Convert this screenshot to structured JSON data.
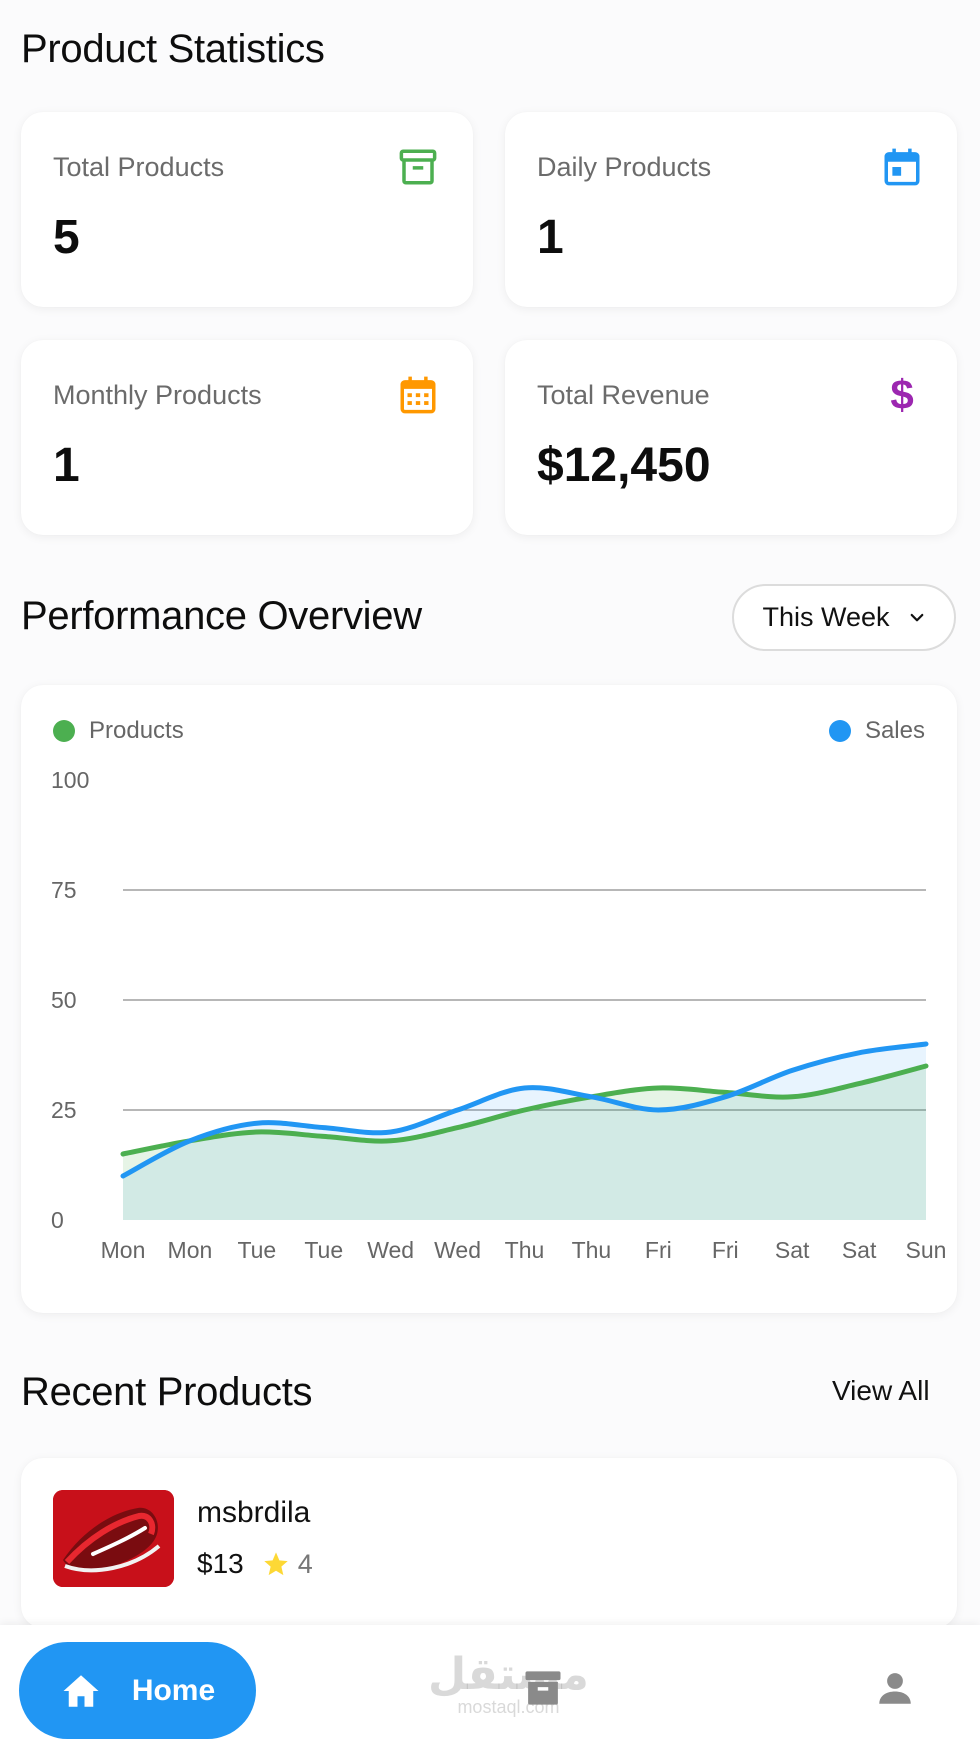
{
  "header": {
    "title": "Product Statistics"
  },
  "stats": [
    {
      "label": "Total Products",
      "value": "5",
      "icon": "archive-icon",
      "color": "#4caf50"
    },
    {
      "label": "Daily Products",
      "value": "1",
      "icon": "calendar-today-icon",
      "color": "#2196f3"
    },
    {
      "label": "Monthly Products",
      "value": "1",
      "icon": "calendar-month-icon",
      "color": "#ff9800"
    },
    {
      "label": "Total Revenue",
      "value": "$12,450",
      "icon": "dollar-icon",
      "color": "#9c27b0"
    }
  ],
  "performance": {
    "title": "Performance Overview",
    "period": "This Week"
  },
  "chart_data": {
    "type": "line",
    "title": "",
    "categories": [
      "Mon",
      "Mon",
      "Tue",
      "Tue",
      "Wed",
      "Wed",
      "Thu",
      "Thu",
      "Fri",
      "Fri",
      "Sat",
      "Sat",
      "Sun"
    ],
    "series": [
      {
        "name": "Products",
        "color": "#4caf50",
        "values": [
          15,
          18,
          20,
          19,
          18,
          21,
          25,
          28,
          30,
          29,
          28,
          31,
          35
        ]
      },
      {
        "name": "Sales",
        "color": "#2196f3",
        "values": [
          10,
          18,
          22,
          21,
          20,
          25,
          30,
          28,
          25,
          28,
          34,
          38,
          40
        ]
      }
    ],
    "yticks": [
      "0",
      "25",
      "50",
      "75",
      "100"
    ],
    "ylim": [
      0,
      100
    ],
    "grid": true,
    "legend": "top"
  },
  "recent": {
    "title": "Recent Products",
    "view_all": "View All",
    "items": [
      {
        "name": "msbrdila",
        "price": "$13",
        "rating": "4"
      }
    ]
  },
  "nav": {
    "home_label": "Home",
    "watermark_ar": "مستقل",
    "watermark_lat": "mostaql.com"
  },
  "colors": {
    "accent": "#2196f3",
    "star": "#fdd835"
  }
}
